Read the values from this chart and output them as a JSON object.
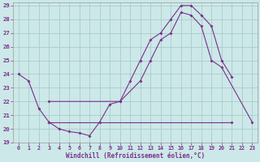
{
  "xlabel": "Windchill (Refroidissement éolien,°C)",
  "bg_color": "#cce8e8",
  "grid_color": "#aacccc",
  "line_color": "#7b2f8b",
  "xlim": [
    -0.5,
    23.5
  ],
  "ylim": [
    19,
    29.2
  ],
  "xticks": [
    0,
    1,
    2,
    3,
    4,
    5,
    6,
    7,
    8,
    9,
    10,
    11,
    12,
    13,
    14,
    15,
    16,
    17,
    18,
    19,
    20,
    21,
    22,
    23
  ],
  "yticks": [
    19,
    20,
    21,
    22,
    23,
    24,
    25,
    26,
    27,
    28,
    29
  ],
  "series": [
    {
      "x": [
        0,
        1,
        2,
        3,
        4,
        5,
        6,
        7,
        8,
        9,
        10,
        11,
        12,
        13,
        14,
        15,
        16,
        17,
        18,
        19,
        20,
        21
      ],
      "y": [
        24.0,
        23.5,
        21.5,
        20.5,
        20.0,
        19.8,
        19.7,
        19.5,
        20.5,
        21.8,
        22.0,
        23.5,
        25.0,
        26.5,
        27.0,
        28.0,
        29.0,
        29.0,
        28.3,
        27.5,
        25.0,
        23.8
      ]
    },
    {
      "x": [
        3,
        10,
        12,
        13,
        14,
        15,
        16,
        17,
        18,
        19,
        20,
        23
      ],
      "y": [
        22.0,
        22.0,
        23.5,
        25.0,
        26.5,
        27.0,
        28.5,
        28.3,
        27.5,
        25.0,
        24.5,
        20.5
      ]
    },
    {
      "x": [
        3,
        21
      ],
      "y": [
        20.5,
        20.5
      ]
    }
  ]
}
